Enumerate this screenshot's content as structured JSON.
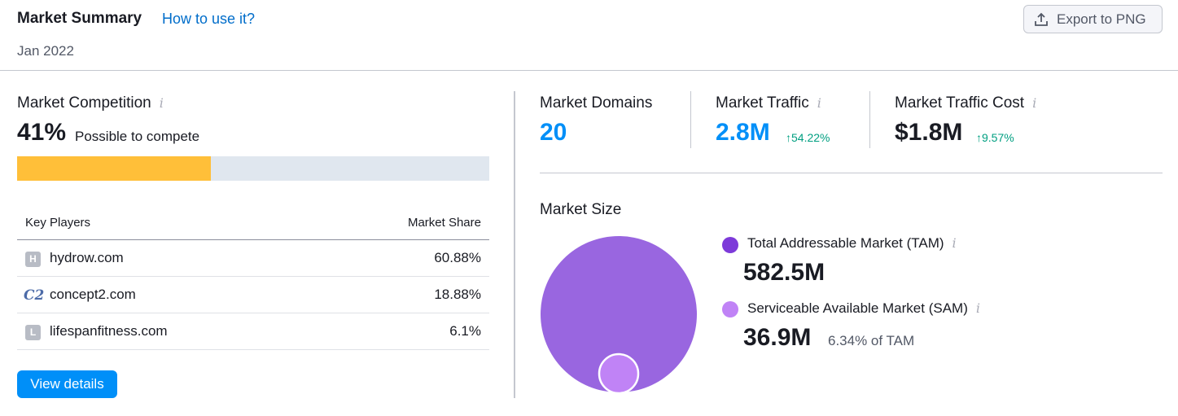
{
  "header": {
    "title": "Market Summary",
    "how_to_link": "How to use it?",
    "date": "Jan 2022",
    "export_label": "Export to PNG",
    "export_icon": "upload-icon"
  },
  "competition": {
    "title": "Market Competition",
    "info_icon": "info-icon",
    "percent": "41%",
    "percent_value": 41,
    "label": "Possible to compete",
    "bar_color": "#ffbf39",
    "bar_track_color": "#e0e7ef"
  },
  "key_players": {
    "col_player": "Key Players",
    "col_share": "Market Share",
    "rows": [
      {
        "favicon": "H",
        "domain": "hydrow.com",
        "share": "60.88%"
      },
      {
        "favicon": "C2",
        "domain": "concept2.com",
        "share": "18.88%"
      },
      {
        "favicon": "L",
        "domain": "lifespanfitness.com",
        "share": "6.1%"
      }
    ]
  },
  "view_details_label": "View details",
  "metrics": {
    "domains": {
      "label": "Market Domains",
      "value": "20"
    },
    "traffic": {
      "label": "Market Traffic",
      "value": "2.8M",
      "delta": "54.22%"
    },
    "traffic_cost": {
      "label": "Market Traffic Cost",
      "value": "$1.8M",
      "delta": "9.57%"
    }
  },
  "market_size": {
    "title": "Market Size",
    "tam": {
      "label": "Total Addressable Market (TAM)",
      "value": "582.5M",
      "color": "#9966e0",
      "dot_color": "#7d3ad9"
    },
    "sam": {
      "label": "Serviceable Available Market (SAM)",
      "value": "36.9M",
      "note": "6.34% of TAM",
      "color": "#c083f6"
    }
  },
  "colors": {
    "accent_blue": "#008ff8",
    "link_blue": "#006dca",
    "positive_green": "#009f81"
  }
}
